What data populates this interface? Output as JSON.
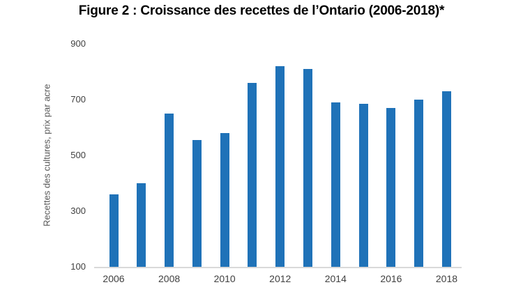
{
  "colors": {
    "bar": "#1f72b8",
    "axis_line": "#d9d9d9",
    "tick_text": "#404040",
    "axis_title_text": "#595959",
    "title_text": "#000000",
    "background": "#ffffff"
  },
  "chart_data": {
    "type": "bar",
    "title": "Figure 2 : Croissance des recettes de l’Ontario (2006-2018)*",
    "xlabel": "",
    "ylabel": "Recettes des cultures, prix par acre",
    "categories": [
      2006,
      2007,
      2008,
      2009,
      2010,
      2011,
      2012,
      2013,
      2014,
      2015,
      2016,
      2017,
      2018
    ],
    "values": [
      360,
      400,
      650,
      555,
      580,
      760,
      820,
      810,
      690,
      685,
      670,
      700,
      730
    ],
    "ylim": [
      100,
      900
    ],
    "yticks": [
      100,
      300,
      500,
      700,
      900
    ],
    "x_tick_labels": [
      "2006",
      "2008",
      "2010",
      "2012",
      "2014",
      "2016",
      "2018"
    ],
    "x_tick_every": 2,
    "grid": false,
    "legend_position": "none"
  }
}
